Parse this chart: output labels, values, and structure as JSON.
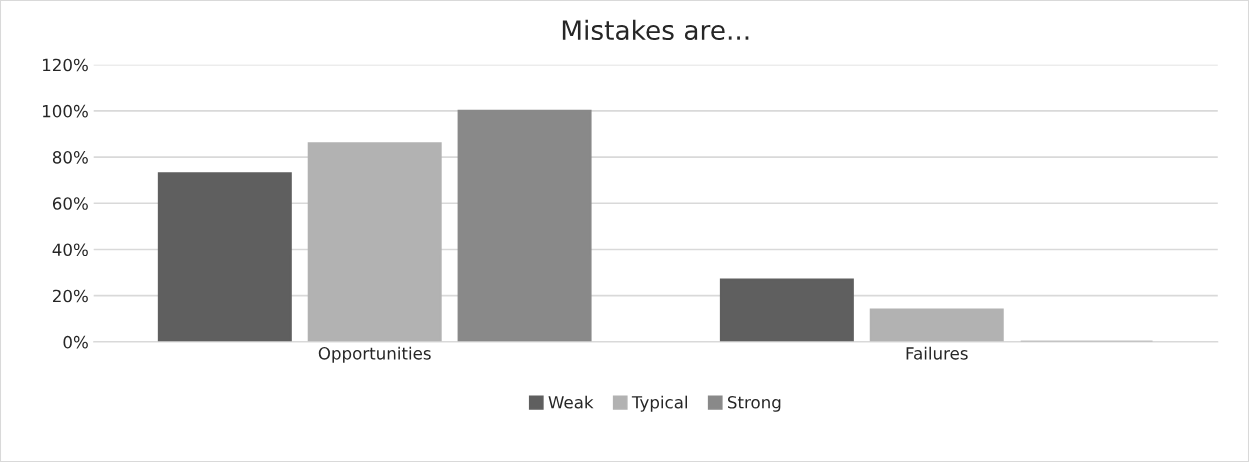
{
  "chart_data": {
    "type": "bar",
    "title": "Mistakes are...",
    "categories": [
      "Opportunities",
      "Failures"
    ],
    "series": [
      {
        "name": "Weak",
        "color": "#5f5f5f",
        "values": [
          73,
          27
        ]
      },
      {
        "name": "Typical",
        "color": "#b2b2b2",
        "values": [
          86,
          14
        ]
      },
      {
        "name": "Strong",
        "color": "#898989",
        "values": [
          100,
          0
        ]
      }
    ],
    "ylim": [
      0,
      120
    ],
    "yticks": [
      {
        "value": 0,
        "label": "0%"
      },
      {
        "value": 20,
        "label": "20%"
      },
      {
        "value": 40,
        "label": "40%"
      },
      {
        "value": 60,
        "label": "60%"
      },
      {
        "value": 80,
        "label": "80%"
      },
      {
        "value": 100,
        "label": "100%"
      },
      {
        "value": 120,
        "label": "120%"
      }
    ],
    "grid": "y",
    "legend": "bottom"
  }
}
